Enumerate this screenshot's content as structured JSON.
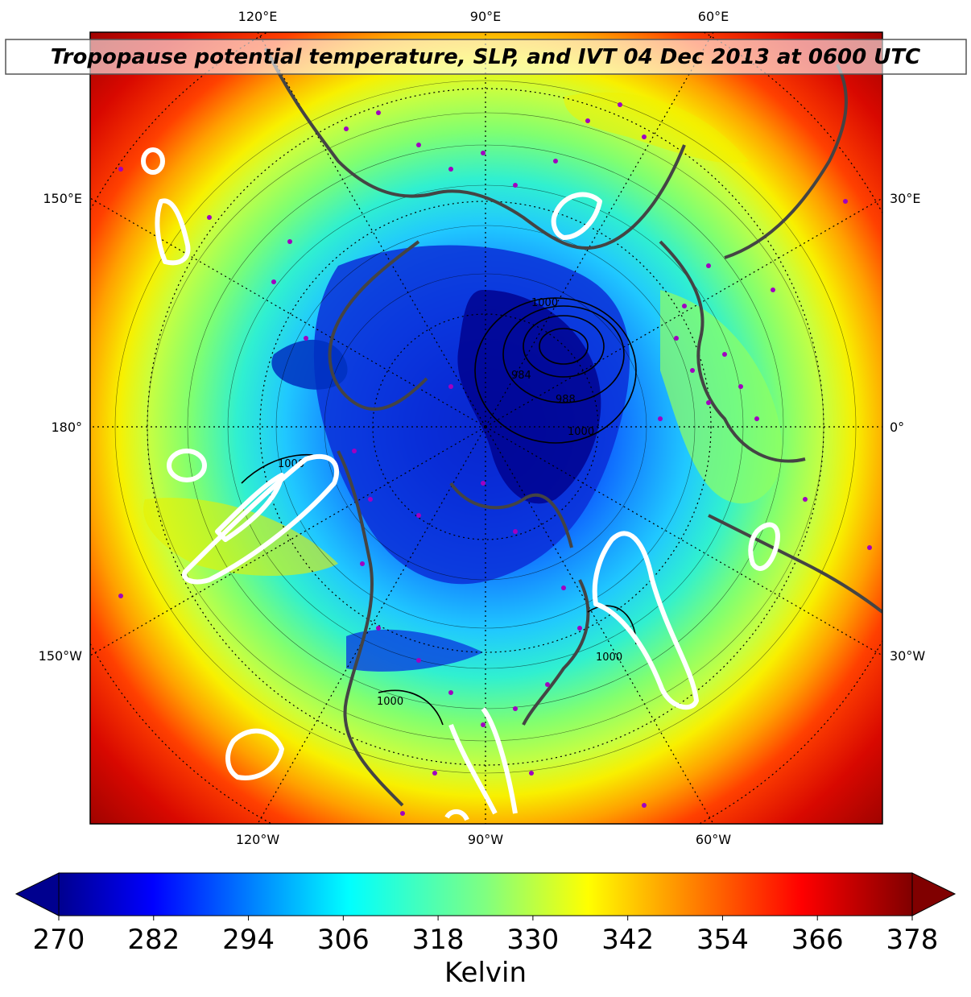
{
  "title": "Tropopause potential temperature, SLP, and IVT 04 Dec 2013 at 0600 UTC",
  "longitude_labels": {
    "top": [
      "120°E",
      "90°E",
      "60°E"
    ],
    "bottom": [
      "120°W",
      "90°W",
      "60°W"
    ],
    "left": [
      "150°E",
      "180°",
      "150°W"
    ],
    "right": [
      "30°E",
      "0°",
      "30°W"
    ]
  },
  "slp_contour_labels": [
    "1000",
    "984",
    "988",
    "1000",
    "1000",
    "1000",
    "1000"
  ],
  "colorbar": {
    "unit_label": "Kelvin",
    "min": 270,
    "max": 378,
    "ticks": [
      "270",
      "282",
      "294",
      "306",
      "318",
      "330",
      "342",
      "354",
      "366",
      "378"
    ],
    "colormap": "jet",
    "extend": "both"
  },
  "colors": {
    "cold_core": "#00008b",
    "blue": "#1060ff",
    "cyan": "#20e0f0",
    "green": "#80ff70",
    "yellow": "#f0f000",
    "orange": "#ff8000",
    "red": "#e01000",
    "dark_red": "#800000",
    "ivt_contour": "#ffffff",
    "coastline": "#444444",
    "station_marker": "#a000c0"
  }
}
